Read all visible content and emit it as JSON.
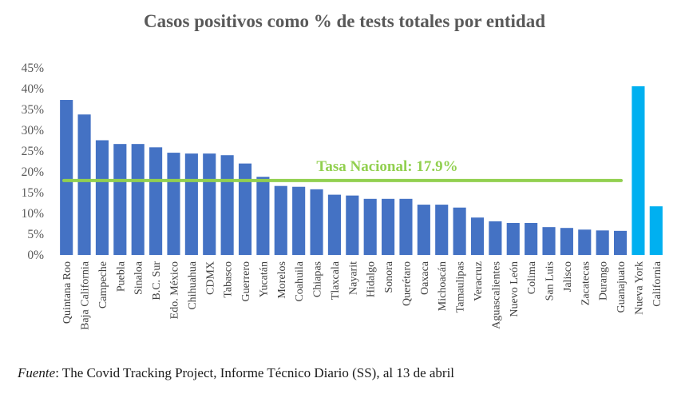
{
  "chart_data": {
    "type": "bar",
    "title": "Casos positivos como % de tests totales por entidad",
    "xlabel": "",
    "ylabel": "",
    "ylim": [
      0,
      45
    ],
    "y_ticks": [
      "0%",
      "5%",
      "10%",
      "15%",
      "20%",
      "25%",
      "30%",
      "35%",
      "40%",
      "45%"
    ],
    "y_tick_values": [
      0,
      5,
      10,
      15,
      20,
      25,
      30,
      35,
      40,
      45
    ],
    "grid": false,
    "categories": [
      "Quintana Roo",
      "Baja California",
      "Campeche",
      "Puebla",
      "Sinaloa",
      "B.C. Sur",
      "Edo. México",
      "Chihuahua",
      "CDMX",
      "Tabasco",
      "Guerrero",
      "Yucatán",
      "Morelos",
      "Coahuila",
      "Chiapas",
      "Tlaxcala",
      "Nayarit",
      "Hidalgo",
      "Sonora",
      "Querétaro",
      "Oaxaca",
      "Michoacán",
      "Tamaulipas",
      "Veracruz",
      "Aguascalientes",
      "Nuevo León",
      "Colima",
      "San Luis",
      "Jalisco",
      "Zacatecas",
      "Durango",
      "Guanajuato",
      "Nueva York",
      "California"
    ],
    "values": [
      37.3,
      33.8,
      27.6,
      26.7,
      26.7,
      25.9,
      24.6,
      24.4,
      24.4,
      24.0,
      22.0,
      18.8,
      16.6,
      16.4,
      15.8,
      14.5,
      14.3,
      13.5,
      13.5,
      13.5,
      12.1,
      12.1,
      11.4,
      9.0,
      8.1,
      7.7,
      7.7,
      6.7,
      6.5,
      6.1,
      5.9,
      5.8,
      40.6,
      11.7
    ],
    "colors": [
      "#4472C4",
      "#4472C4",
      "#4472C4",
      "#4472C4",
      "#4472C4",
      "#4472C4",
      "#4472C4",
      "#4472C4",
      "#4472C4",
      "#4472C4",
      "#4472C4",
      "#4472C4",
      "#4472C4",
      "#4472C4",
      "#4472C4",
      "#4472C4",
      "#4472C4",
      "#4472C4",
      "#4472C4",
      "#4472C4",
      "#4472C4",
      "#4472C4",
      "#4472C4",
      "#4472C4",
      "#4472C4",
      "#4472C4",
      "#4472C4",
      "#4472C4",
      "#4472C4",
      "#4472C4",
      "#4472C4",
      "#4472C4",
      "#00B0F0",
      "#00B0F0"
    ],
    "reference_line": {
      "label": "Tasa Nacional: 17.9%",
      "value": 17.9,
      "color": "#92D050"
    }
  },
  "source": {
    "label": "Fuente",
    "text": ": The Covid Tracking Project, Informe Técnico Diario (SS), al 13 de abril"
  }
}
